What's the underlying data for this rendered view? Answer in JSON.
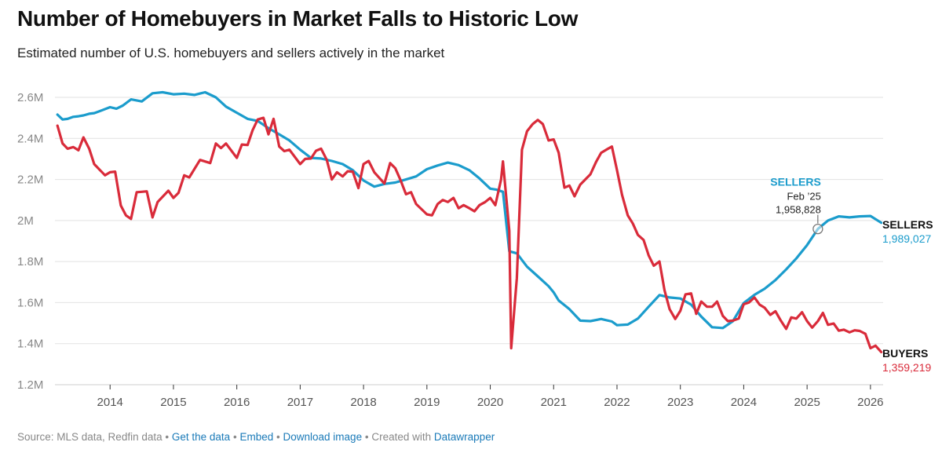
{
  "header": {
    "title": "Number of Homebuyers in Market Falls to Historic Low",
    "subtitle": "Estimated number of U.S. homebuyers and sellers actively in the market"
  },
  "footer": {
    "source": "Source: MLS data, Redfin data",
    "get_data": "Get the data",
    "embed": "Embed",
    "download": "Download image",
    "created_with": "Created with",
    "datawrapper": "Datawrapper",
    "bullet": "•"
  },
  "colors": {
    "sellers": "#1b9ccc",
    "buyers": "#d92b3a",
    "grid": "#e2e2e2",
    "axis_text": "#888888",
    "link": "#1a7ab8"
  },
  "chart_data": {
    "type": "line",
    "title": "Number of Homebuyers in Market Falls to Historic Low",
    "subtitle": "Estimated number of U.S. homebuyers and sellers actively in the market",
    "x_tick_labels": [
      "2014",
      "2015",
      "2016",
      "2017",
      "2018",
      "2019",
      "2020",
      "2021",
      "2022",
      "2023",
      "2024",
      "2025",
      "2026"
    ],
    "y_tick_labels": [
      "1.2M",
      "1.4M",
      "1.6M",
      "1.8M",
      "2M",
      "2.2M",
      "2.4M",
      "2.6M"
    ],
    "y_ticks": [
      1200000,
      1400000,
      1600000,
      1800000,
      2000000,
      2200000,
      2400000,
      2600000
    ],
    "ylim": [
      1200000,
      2600000
    ],
    "xlim": [
      2013.13,
      2026.2
    ],
    "grid": true,
    "series": [
      {
        "name": "SELLERS",
        "color": "#1b9ccc",
        "end_value_label": "1,989,027",
        "points": [
          [
            2013.17,
            2516000
          ],
          [
            2013.25,
            2492000
          ],
          [
            2013.33,
            2495000
          ],
          [
            2013.42,
            2505000
          ],
          [
            2013.5,
            2508000
          ],
          [
            2013.58,
            2512000
          ],
          [
            2013.67,
            2520000
          ],
          [
            2013.75,
            2523000
          ],
          [
            2013.83,
            2532000
          ],
          [
            2014.0,
            2552000
          ],
          [
            2014.1,
            2545000
          ],
          [
            2014.2,
            2560000
          ],
          [
            2014.33,
            2590000
          ],
          [
            2014.5,
            2580000
          ],
          [
            2014.67,
            2620000
          ],
          [
            2014.83,
            2625000
          ],
          [
            2015.0,
            2615000
          ],
          [
            2015.17,
            2618000
          ],
          [
            2015.33,
            2612000
          ],
          [
            2015.5,
            2625000
          ],
          [
            2015.67,
            2600000
          ],
          [
            2015.83,
            2555000
          ],
          [
            2016.0,
            2525000
          ],
          [
            2016.17,
            2495000
          ],
          [
            2016.33,
            2485000
          ],
          [
            2016.5,
            2450000
          ],
          [
            2016.67,
            2420000
          ],
          [
            2016.83,
            2390000
          ],
          [
            2017.0,
            2345000
          ],
          [
            2017.17,
            2305000
          ],
          [
            2017.33,
            2302000
          ],
          [
            2017.5,
            2290000
          ],
          [
            2017.67,
            2275000
          ],
          [
            2017.83,
            2245000
          ],
          [
            2018.0,
            2195000
          ],
          [
            2018.17,
            2165000
          ],
          [
            2018.33,
            2178000
          ],
          [
            2018.5,
            2185000
          ],
          [
            2018.67,
            2200000
          ],
          [
            2018.83,
            2215000
          ],
          [
            2019.0,
            2250000
          ],
          [
            2019.17,
            2268000
          ],
          [
            2019.33,
            2282000
          ],
          [
            2019.5,
            2270000
          ],
          [
            2019.67,
            2245000
          ],
          [
            2019.83,
            2205000
          ],
          [
            2020.0,
            2155000
          ],
          [
            2020.1,
            2150000
          ],
          [
            2020.2,
            2140000
          ],
          [
            2020.3,
            1850000
          ],
          [
            2020.42,
            1840000
          ],
          [
            2020.58,
            1775000
          ],
          [
            2020.75,
            1728000
          ],
          [
            2020.92,
            1680000
          ],
          [
            2021.0,
            1650000
          ],
          [
            2021.08,
            1610000
          ],
          [
            2021.25,
            1568000
          ],
          [
            2021.42,
            1512000
          ],
          [
            2021.58,
            1510000
          ],
          [
            2021.75,
            1520000
          ],
          [
            2021.92,
            1508000
          ],
          [
            2022.0,
            1490000
          ],
          [
            2022.17,
            1493000
          ],
          [
            2022.33,
            1522000
          ],
          [
            2022.5,
            1580000
          ],
          [
            2022.67,
            1637000
          ],
          [
            2022.83,
            1625000
          ],
          [
            2023.0,
            1620000
          ],
          [
            2023.17,
            1590000
          ],
          [
            2023.33,
            1532000
          ],
          [
            2023.5,
            1480000
          ],
          [
            2023.67,
            1476000
          ],
          [
            2023.83,
            1510000
          ],
          [
            2024.0,
            1598000
          ],
          [
            2024.17,
            1638000
          ],
          [
            2024.33,
            1668000
          ],
          [
            2024.5,
            1710000
          ],
          [
            2024.67,
            1762000
          ],
          [
            2024.83,
            1815000
          ],
          [
            2025.0,
            1880000
          ],
          [
            2025.17,
            1958828
          ],
          [
            2025.33,
            2000000
          ],
          [
            2025.5,
            2020000
          ],
          [
            2025.67,
            2015000
          ],
          [
            2025.83,
            2020000
          ],
          [
            2026.0,
            2022000
          ],
          [
            2026.17,
            1989027
          ]
        ]
      },
      {
        "name": "BUYERS",
        "color": "#d92b3a",
        "end_value_label": "1,359,219",
        "points": [
          [
            2013.17,
            2462000
          ],
          [
            2013.25,
            2375000
          ],
          [
            2013.33,
            2350000
          ],
          [
            2013.42,
            2358000
          ],
          [
            2013.5,
            2342000
          ],
          [
            2013.58,
            2405000
          ],
          [
            2013.67,
            2350000
          ],
          [
            2013.75,
            2275000
          ],
          [
            2013.92,
            2220000
          ],
          [
            2014.0,
            2235000
          ],
          [
            2014.08,
            2238000
          ],
          [
            2014.17,
            2073000
          ],
          [
            2014.25,
            2025000
          ],
          [
            2014.33,
            2008000
          ],
          [
            2014.42,
            2138000
          ],
          [
            2014.5,
            2140000
          ],
          [
            2014.58,
            2142000
          ],
          [
            2014.67,
            2015000
          ],
          [
            2014.75,
            2090000
          ],
          [
            2014.92,
            2145000
          ],
          [
            2015.0,
            2110000
          ],
          [
            2015.08,
            2135000
          ],
          [
            2015.17,
            2220000
          ],
          [
            2015.25,
            2210000
          ],
          [
            2015.42,
            2295000
          ],
          [
            2015.58,
            2280000
          ],
          [
            2015.67,
            2375000
          ],
          [
            2015.75,
            2353000
          ],
          [
            2015.83,
            2375000
          ],
          [
            2016.0,
            2305000
          ],
          [
            2016.08,
            2370000
          ],
          [
            2016.17,
            2368000
          ],
          [
            2016.25,
            2440000
          ],
          [
            2016.33,
            2492000
          ],
          [
            2016.42,
            2500000
          ],
          [
            2016.5,
            2420000
          ],
          [
            2016.58,
            2495000
          ],
          [
            2016.67,
            2360000
          ],
          [
            2016.75,
            2338000
          ],
          [
            2016.83,
            2345000
          ],
          [
            2017.0,
            2275000
          ],
          [
            2017.08,
            2300000
          ],
          [
            2017.17,
            2302000
          ],
          [
            2017.25,
            2340000
          ],
          [
            2017.33,
            2350000
          ],
          [
            2017.42,
            2295000
          ],
          [
            2017.5,
            2200000
          ],
          [
            2017.58,
            2235000
          ],
          [
            2017.67,
            2215000
          ],
          [
            2017.75,
            2240000
          ],
          [
            2017.83,
            2238000
          ],
          [
            2017.92,
            2158000
          ],
          [
            2018.0,
            2275000
          ],
          [
            2018.08,
            2290000
          ],
          [
            2018.17,
            2235000
          ],
          [
            2018.33,
            2180000
          ],
          [
            2018.42,
            2280000
          ],
          [
            2018.5,
            2255000
          ],
          [
            2018.58,
            2200000
          ],
          [
            2018.67,
            2128000
          ],
          [
            2018.75,
            2138000
          ],
          [
            2018.83,
            2080000
          ],
          [
            2019.0,
            2030000
          ],
          [
            2019.08,
            2025000
          ],
          [
            2019.17,
            2080000
          ],
          [
            2019.25,
            2100000
          ],
          [
            2019.33,
            2090000
          ],
          [
            2019.42,
            2110000
          ],
          [
            2019.5,
            2060000
          ],
          [
            2019.58,
            2075000
          ],
          [
            2019.67,
            2060000
          ],
          [
            2019.75,
            2045000
          ],
          [
            2019.83,
            2075000
          ],
          [
            2019.92,
            2090000
          ],
          [
            2020.0,
            2110000
          ],
          [
            2020.08,
            2075000
          ],
          [
            2020.17,
            2200000
          ],
          [
            2020.2,
            2288000
          ],
          [
            2020.3,
            1950000
          ],
          [
            2020.33,
            1378000
          ],
          [
            2020.42,
            1720000
          ],
          [
            2020.5,
            2345000
          ],
          [
            2020.58,
            2435000
          ],
          [
            2020.67,
            2470000
          ],
          [
            2020.75,
            2490000
          ],
          [
            2020.83,
            2470000
          ],
          [
            2020.92,
            2390000
          ],
          [
            2021.0,
            2395000
          ],
          [
            2021.08,
            2330000
          ],
          [
            2021.17,
            2160000
          ],
          [
            2021.25,
            2170000
          ],
          [
            2021.33,
            2118000
          ],
          [
            2021.42,
            2175000
          ],
          [
            2021.58,
            2225000
          ],
          [
            2021.67,
            2285000
          ],
          [
            2021.75,
            2330000
          ],
          [
            2021.83,
            2345000
          ],
          [
            2021.92,
            2360000
          ],
          [
            2022.0,
            2245000
          ],
          [
            2022.08,
            2125000
          ],
          [
            2022.17,
            2025000
          ],
          [
            2022.25,
            1985000
          ],
          [
            2022.33,
            1930000
          ],
          [
            2022.42,
            1905000
          ],
          [
            2022.5,
            1830000
          ],
          [
            2022.58,
            1780000
          ],
          [
            2022.67,
            1800000
          ],
          [
            2022.75,
            1660000
          ],
          [
            2022.83,
            1568000
          ],
          [
            2022.92,
            1520000
          ],
          [
            2023.0,
            1560000
          ],
          [
            2023.08,
            1640000
          ],
          [
            2023.17,
            1645000
          ],
          [
            2023.25,
            1545000
          ],
          [
            2023.33,
            1605000
          ],
          [
            2023.42,
            1580000
          ],
          [
            2023.5,
            1580000
          ],
          [
            2023.58,
            1605000
          ],
          [
            2023.67,
            1535000
          ],
          [
            2023.75,
            1510000
          ],
          [
            2023.83,
            1512000
          ],
          [
            2023.92,
            1522000
          ],
          [
            2024.0,
            1592000
          ],
          [
            2024.08,
            1600000
          ],
          [
            2024.17,
            1625000
          ],
          [
            2024.25,
            1590000
          ],
          [
            2024.33,
            1575000
          ],
          [
            2024.42,
            1540000
          ],
          [
            2024.5,
            1558000
          ],
          [
            2024.58,
            1515000
          ],
          [
            2024.67,
            1472000
          ],
          [
            2024.75,
            1528000
          ],
          [
            2024.83,
            1522000
          ],
          [
            2024.92,
            1553000
          ],
          [
            2025.0,
            1510000
          ],
          [
            2025.08,
            1478000
          ],
          [
            2025.17,
            1510000
          ],
          [
            2025.25,
            1550000
          ],
          [
            2025.33,
            1492000
          ],
          [
            2025.42,
            1498000
          ],
          [
            2025.5,
            1463000
          ],
          [
            2025.58,
            1468000
          ],
          [
            2025.67,
            1455000
          ],
          [
            2025.75,
            1465000
          ],
          [
            2025.83,
            1462000
          ],
          [
            2025.92,
            1448000
          ],
          [
            2026.0,
            1378000
          ],
          [
            2026.08,
            1390000
          ],
          [
            2026.17,
            1359219
          ]
        ]
      }
    ],
    "annotations": {
      "sellers_label": "SELLERS",
      "sellers_value": "1,989,027",
      "buyers_label": "BUYERS",
      "buyers_value": "1,359,219",
      "callout_series": "SELLERS",
      "callout_date": "Feb ’25",
      "callout_value": "1,958,828",
      "callout_x": 2025.17,
      "callout_y": 1958828
    }
  }
}
